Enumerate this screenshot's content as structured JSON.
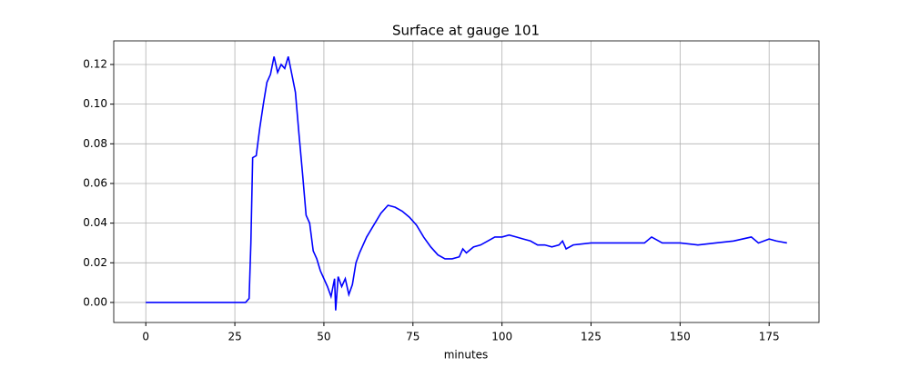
{
  "chart_data": {
    "type": "line",
    "title": "Surface at gauge 101",
    "x_label": "minutes",
    "x": [
      0,
      28,
      29,
      29.5,
      30,
      31,
      32,
      33,
      34,
      35,
      36,
      37,
      38,
      39,
      40,
      41,
      42,
      43,
      44,
      45,
      46,
      47,
      48,
      49,
      50,
      51,
      52,
      53,
      53.3,
      54,
      55,
      56,
      57,
      58,
      59,
      60,
      62,
      64,
      66,
      68,
      70,
      72,
      74,
      76,
      78,
      80,
      82,
      84,
      86,
      88,
      89,
      90,
      92,
      94,
      96,
      98,
      100,
      102,
      104,
      106,
      108,
      110,
      112,
      114,
      116,
      117,
      118,
      120,
      125,
      130,
      135,
      140,
      142,
      145,
      150,
      155,
      160,
      165,
      170,
      172,
      175,
      177,
      180
    ],
    "series": [
      {
        "color": "#0000ff",
        "values": [
          0,
          0,
          0.002,
          0.03,
          0.073,
          0.074,
          0.088,
          0.1,
          0.111,
          0.115,
          0.124,
          0.116,
          0.12,
          0.118,
          0.124,
          0.115,
          0.106,
          0.085,
          0.065,
          0.044,
          0.04,
          0.026,
          0.022,
          0.016,
          0.012,
          0.008,
          0.003,
          0.012,
          -0.004,
          0.013,
          0.008,
          0.012,
          0.004,
          0.009,
          0.02,
          0.025,
          0.033,
          0.039,
          0.045,
          0.049,
          0.048,
          0.046,
          0.043,
          0.039,
          0.033,
          0.028,
          0.024,
          0.022,
          0.022,
          0.023,
          0.027,
          0.025,
          0.028,
          0.029,
          0.031,
          0.033,
          0.033,
          0.034,
          0.033,
          0.032,
          0.031,
          0.029,
          0.029,
          0.028,
          0.029,
          0.031,
          0.027,
          0.029,
          0.03,
          0.03,
          0.03,
          0.03,
          0.033,
          0.03,
          0.03,
          0.029,
          0.03,
          0.031,
          0.033,
          0.03,
          0.032,
          0.031,
          0.03
        ]
      }
    ],
    "xlim": [
      -9,
      189
    ],
    "xticks": [
      0,
      25,
      50,
      75,
      100,
      125,
      150,
      175
    ],
    "ylim": [
      -0.0101,
      0.1319
    ],
    "yticks": [
      {
        "value": 0,
        "label": "0.00"
      },
      {
        "value": 0.02,
        "label": "0.02"
      },
      {
        "value": 0.04,
        "label": "0.04"
      },
      {
        "value": 0.06,
        "label": "0.06"
      },
      {
        "value": 0.08,
        "label": "0.08"
      },
      {
        "value": 0.1,
        "label": "0.10"
      },
      {
        "value": 0.12,
        "label": "0.12"
      }
    ],
    "grid": true
  }
}
